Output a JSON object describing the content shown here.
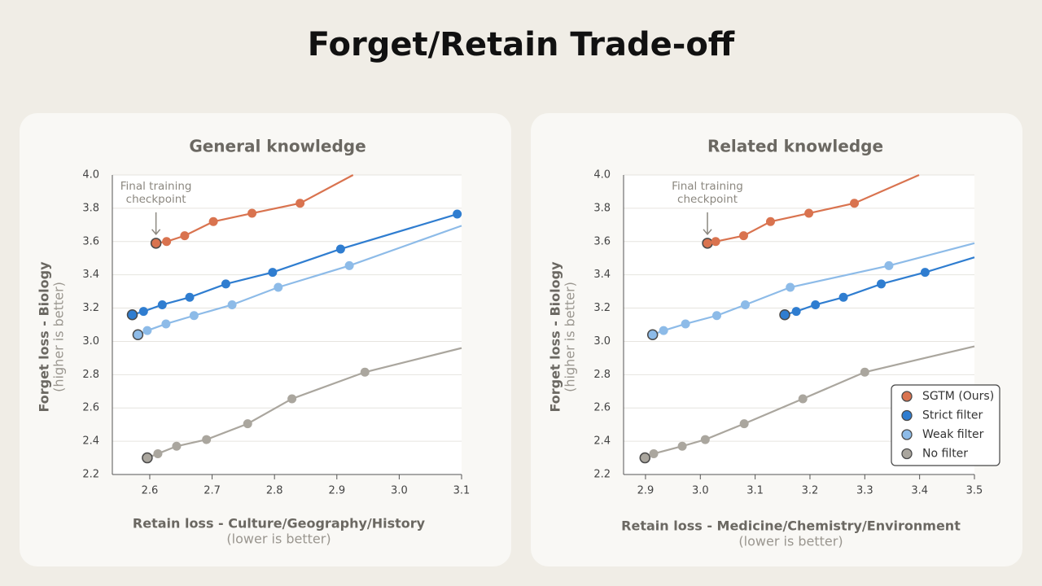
{
  "title": "Forget/Retain Trade-off",
  "chart_data": [
    {
      "type": "line",
      "title": "General knowledge",
      "xlabel": "Retain loss - Culture/Geography/History",
      "xlabel_note": "(lower is better)",
      "ylabel": "Forget loss - Biology",
      "ylabel_note": "(higher is better)",
      "annotation": [
        "Final training",
        "checkpoint"
      ],
      "xlim": [
        2.54,
        3.1
      ],
      "ylim": [
        2.2,
        4.0
      ],
      "xticks": [
        2.6,
        2.7,
        2.8,
        2.9,
        {
          "value": 3,
          "label": "3.0"
        },
        3.1
      ],
      "yticks": [
        2.2,
        2.4,
        2.6,
        2.8,
        {
          "value": 3,
          "label": "3.0"
        },
        3.2,
        3.4,
        3.6,
        3.8,
        {
          "value": 4,
          "label": "4.0"
        }
      ],
      "grid": true,
      "legend": false,
      "series": [
        {
          "color": "#d9734f",
          "x": [
            2.61,
            2.627,
            2.656,
            2.702,
            2.764,
            2.841,
            2.926
          ],
          "values": [
            3.59,
            3.6,
            3.635,
            3.72,
            3.77,
            3.83,
            4.0
          ]
        },
        {
          "color": "#2f7dd0",
          "x": [
            2.572,
            2.59,
            2.62,
            2.664,
            2.722,
            2.797,
            2.906,
            3.093
          ],
          "values": [
            3.16,
            3.18,
            3.22,
            3.265,
            3.345,
            3.415,
            3.555,
            3.765
          ]
        },
        {
          "color": "#8dbbe8",
          "x": [
            2.581,
            2.596,
            2.626,
            2.671,
            2.732,
            2.806,
            2.92,
            3.1
          ],
          "values": [
            3.04,
            3.065,
            3.105,
            3.155,
            3.22,
            3.325,
            3.455,
            3.695
          ]
        },
        {
          "color": "#aaa69e",
          "x": [
            2.596,
            2.613,
            2.643,
            2.691,
            2.757,
            2.828,
            2.945,
            3.1
          ],
          "values": [
            2.3,
            2.325,
            2.37,
            2.41,
            2.505,
            2.655,
            2.815,
            2.96
          ]
        }
      ]
    },
    {
      "type": "line",
      "title": "Related knowledge",
      "xlabel": "Retain loss - Medicine/Chemistry/Environment",
      "xlabel_note": "(lower is better)",
      "ylabel": "Forget loss - Biology",
      "ylabel_note": "(higher is better)",
      "annotation": [
        "Final training",
        "checkpoint"
      ],
      "xlim": [
        2.86,
        3.5
      ],
      "ylim": [
        2.2,
        4.0
      ],
      "xticks": [
        2.9,
        {
          "value": 3,
          "label": "3.0"
        },
        3.1,
        3.2,
        3.3,
        3.4,
        3.5
      ],
      "yticks": [
        2.2,
        2.4,
        2.6,
        2.8,
        {
          "value": 3,
          "label": "3.0"
        },
        3.2,
        3.4,
        3.6,
        3.8,
        {
          "value": 4,
          "label": "4.0"
        }
      ],
      "grid": true,
      "legend": "lower right",
      "series": [
        {
          "name": "SGTM (Ours)",
          "color": "#d9734f",
          "x": [
            3.013,
            3.028,
            3.079,
            3.128,
            3.198,
            3.281,
            3.399
          ],
          "values": [
            3.59,
            3.6,
            3.635,
            3.72,
            3.77,
            3.83,
            4.0
          ]
        },
        {
          "name": "Strict filter",
          "color": "#2f7dd0",
          "x": [
            3.154,
            3.175,
            3.21,
            3.261,
            3.33,
            3.41,
            3.5
          ],
          "values": [
            3.16,
            3.18,
            3.22,
            3.265,
            3.345,
            3.415,
            3.505
          ]
        },
        {
          "name": "Weak filter",
          "color": "#8dbbe8",
          "x": [
            2.913,
            2.933,
            2.973,
            3.03,
            3.082,
            3.164,
            3.344,
            3.5
          ],
          "values": [
            3.04,
            3.065,
            3.105,
            3.155,
            3.22,
            3.325,
            3.455,
            3.59
          ]
        },
        {
          "name": "No filter",
          "color": "#aaa69e",
          "x": [
            2.899,
            2.915,
            2.967,
            3.009,
            3.08,
            3.187,
            3.3,
            3.5
          ],
          "values": [
            2.3,
            2.325,
            2.37,
            2.41,
            2.505,
            2.655,
            2.815,
            2.97
          ]
        }
      ]
    }
  ]
}
